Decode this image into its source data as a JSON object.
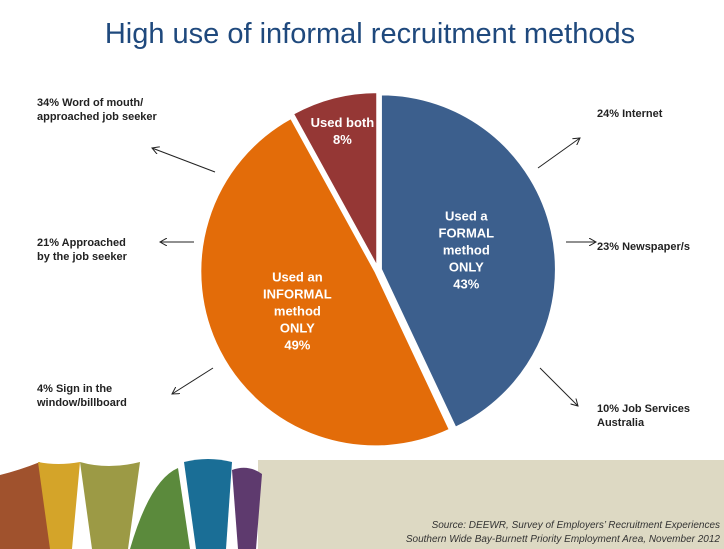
{
  "chart_data": {
    "type": "pie",
    "title": "High use of informal recruitment methods",
    "categories": [
      "Used a\nFORMAL\nmethod\nONLY",
      "Used an\nINFORMAL\nmethod\nONLY",
      "Used both"
    ],
    "values": [
      43,
      49,
      8
    ],
    "value_labels": [
      "43%",
      "49%",
      "8%"
    ],
    "colors": [
      "#3c5f8d",
      "#e36c09",
      "#953735"
    ],
    "annotations": [
      "34% Word of mouth/\napproached job seeker",
      "24% Internet",
      "21% Approached\nby the job seeker",
      "23% Newspaper/s",
      "4% Sign in the\nwindow/billboard",
      "10% Job Services\nAustralia"
    ],
    "source": [
      "Source: DEEWR, Survey of Employers’ Recruitment Experiences",
      "Southern Wide Bay-Burnett Priority Employment Area, November 2012"
    ]
  }
}
